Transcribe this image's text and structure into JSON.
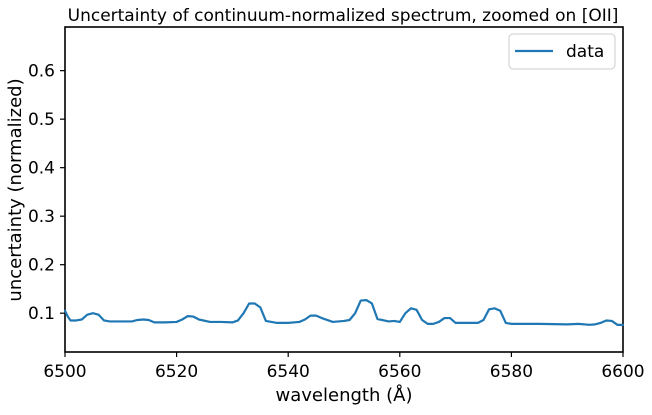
{
  "chart_data": {
    "type": "line",
    "title": "Uncertainty of continuum-normalized spectrum, zoomed on [OII]",
    "xlabel": "wavelength (Å)",
    "ylabel": "uncertainty (normalized)",
    "xlim": [
      6500,
      6600
    ],
    "ylim": [
      0.02,
      0.69
    ],
    "xticks": [
      6500,
      6520,
      6540,
      6560,
      6580,
      6600
    ],
    "yticks": [
      0.1,
      0.2,
      0.3,
      0.4,
      0.5,
      0.6
    ],
    "xtick_labels": [
      "6500",
      "6520",
      "6540",
      "6560",
      "6580",
      "6600"
    ],
    "ytick_labels": [
      "0.1",
      "0.2",
      "0.3",
      "0.4",
      "0.5",
      "0.6"
    ],
    "grid": false,
    "legend": "top-right",
    "series": [
      {
        "name": "data",
        "color": "#1f77b4",
        "x": [
          6500.0,
          6500.5,
          6501,
          6502,
          6503,
          6504,
          6505,
          6506,
          6507,
          6508,
          6510,
          6512,
          6513,
          6514,
          6515,
          6516,
          6518,
          6520,
          6521,
          6522,
          6523,
          6524,
          6526,
          6528,
          6530,
          6531,
          6532,
          6533,
          6534,
          6535,
          6536,
          6538,
          6540,
          6542,
          6543,
          6544,
          6545,
          6546,
          6548,
          6550,
          6551,
          6552,
          6553,
          6554,
          6555,
          6556,
          6558,
          6559,
          6560,
          6561,
          6562,
          6563,
          6564,
          6565,
          6566,
          6567,
          6568,
          6569,
          6570,
          6572,
          6574,
          6575,
          6576,
          6577,
          6578,
          6579,
          6580,
          6582,
          6585,
          6590,
          6592,
          6594,
          6595,
          6596,
          6597,
          6598,
          6599,
          6600
        ],
        "y": [
          0.105,
          0.093,
          0.085,
          0.085,
          0.087,
          0.097,
          0.1,
          0.097,
          0.085,
          0.083,
          0.083,
          0.083,
          0.086,
          0.087,
          0.086,
          0.081,
          0.081,
          0.082,
          0.087,
          0.094,
          0.093,
          0.087,
          0.082,
          0.082,
          0.081,
          0.085,
          0.1,
          0.12,
          0.12,
          0.112,
          0.084,
          0.08,
          0.08,
          0.082,
          0.087,
          0.095,
          0.095,
          0.09,
          0.082,
          0.084,
          0.086,
          0.1,
          0.126,
          0.127,
          0.12,
          0.088,
          0.083,
          0.084,
          0.082,
          0.1,
          0.11,
          0.107,
          0.086,
          0.078,
          0.078,
          0.082,
          0.09,
          0.09,
          0.08,
          0.08,
          0.08,
          0.086,
          0.108,
          0.11,
          0.105,
          0.08,
          0.078,
          0.078,
          0.078,
          0.077,
          0.078,
          0.076,
          0.077,
          0.08,
          0.085,
          0.084,
          0.076,
          0.076
        ]
      }
    ]
  }
}
